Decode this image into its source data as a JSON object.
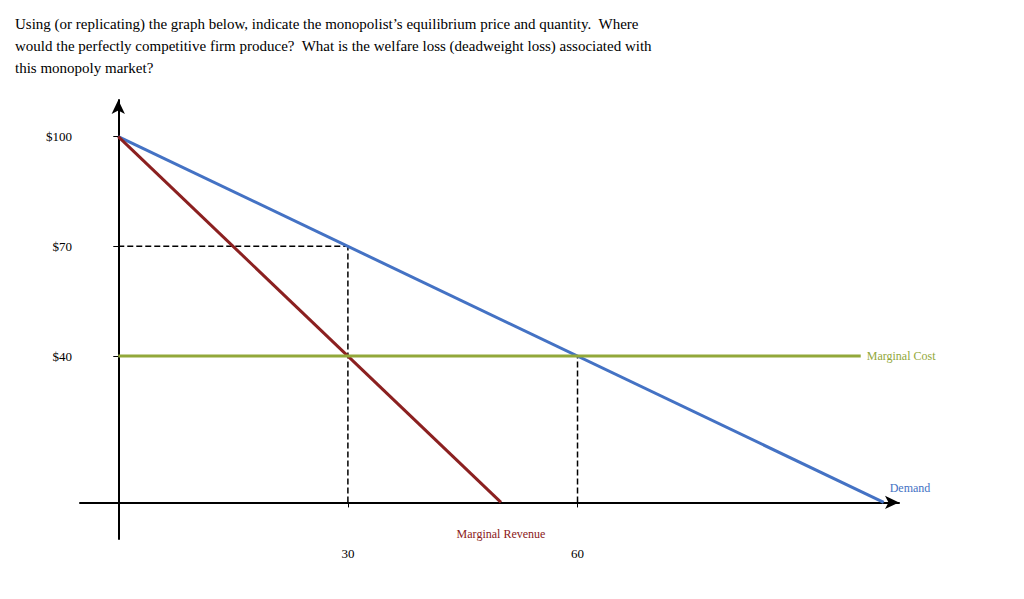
{
  "chart_data": {
    "type": "line",
    "title": "Using (or replicating) the graph below, indicate the monopolist’s equilibrium price and quantity.  Where\nwould the perfectly competitive firm produce?  What is the welfare loss (deadweight loss) associated with\nthis monopoly market?",
    "xlim": [
      -5,
      102
    ],
    "ylim": [
      -10,
      110
    ],
    "xticks": [
      30,
      60
    ],
    "yticks": [
      {
        "value": 40,
        "label": "$40"
      },
      {
        "value": 70,
        "label": "$70"
      },
      {
        "value": 100,
        "label": "$100"
      }
    ],
    "grid": false,
    "series": [
      {
        "name": "Demand",
        "color": "#4472C4",
        "x": [
          0,
          100
        ],
        "values": [
          100,
          0
        ]
      },
      {
        "name": "Marginal Revenue",
        "color": "#8B2020",
        "x": [
          0,
          50
        ],
        "values": [
          100,
          0
        ]
      },
      {
        "name": "Marginal Cost",
        "color": "#92A83A",
        "x": [
          0,
          97
        ],
        "values": [
          40,
          40
        ]
      },
      {
        "color": "black",
        "line_style": "dashed",
        "x": [
          30,
          30
        ],
        "values": [
          0,
          70
        ]
      },
      {
        "color": "black",
        "line_style": "dashed",
        "x": [
          0,
          30
        ],
        "values": [
          70,
          70
        ]
      },
      {
        "color": "black",
        "line_style": "dashed",
        "x": [
          60,
          60
        ],
        "values": [
          0,
          40
        ]
      }
    ]
  }
}
